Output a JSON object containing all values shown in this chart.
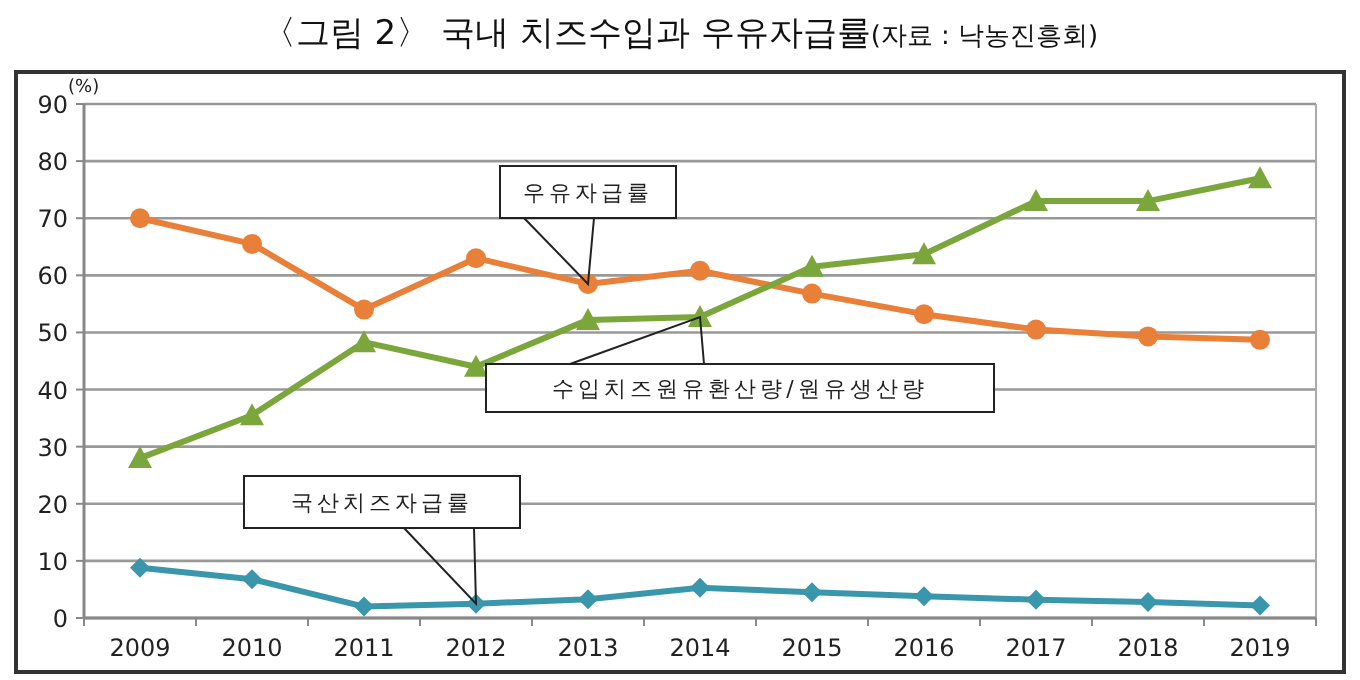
{
  "chart_data": {
    "type": "line",
    "title": "〈그림 2〉 국내 치즈수입과 우유자급률",
    "annotations": [
      "(자료 : 낙농진흥회)"
    ],
    "ylabel": "(%)",
    "categories": [
      "2009",
      "2010",
      "2011",
      "2012",
      "2013",
      "2014",
      "2015",
      "2016",
      "2017",
      "2018",
      "2019"
    ],
    "series": [
      {
        "name": "우유자급률",
        "color": "#e8803a",
        "marker": "circle",
        "values": [
          70,
          65.5,
          54,
          63,
          58.5,
          60.8,
          56.8,
          53.2,
          50.5,
          49.3,
          48.7
        ]
      },
      {
        "name": "수입치즈원유환산량/원유생산량",
        "color": "#7aa63c",
        "marker": "triangle",
        "values": [
          28,
          35.5,
          48.3,
          44,
          52.2,
          52.7,
          61.5,
          63.7,
          73,
          73,
          77
        ]
      },
      {
        "name": "국산치즈자급률",
        "color": "#3a96ab",
        "marker": "diamond",
        "values": [
          8.8,
          6.8,
          2,
          2.5,
          3.3,
          5.3,
          4.5,
          3.8,
          3.2,
          2.8,
          2.2
        ]
      }
    ],
    "ylim": [
      0,
      90
    ],
    "yticks": [
      0,
      10,
      20,
      30,
      40,
      50,
      60,
      70,
      80,
      90
    ],
    "grid": "y"
  }
}
